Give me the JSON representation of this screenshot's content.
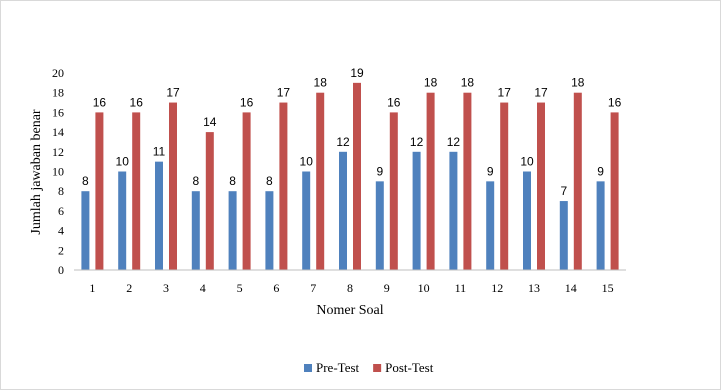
{
  "chart_data": {
    "type": "bar",
    "categories": [
      "1",
      "2",
      "3",
      "4",
      "5",
      "6",
      "7",
      "8",
      "9",
      "10",
      "11",
      "12",
      "13",
      "14",
      "15"
    ],
    "series": [
      {
        "name": "Pre-Test",
        "color": "#4f81bd",
        "values": [
          8,
          10,
          11,
          8,
          8,
          8,
          10,
          12,
          9,
          12,
          12,
          9,
          10,
          7,
          9
        ]
      },
      {
        "name": "Post-Test",
        "color": "#c0504d",
        "values": [
          16,
          16,
          17,
          14,
          16,
          17,
          18,
          19,
          16,
          18,
          18,
          17,
          17,
          18,
          16
        ]
      }
    ],
    "xlabel": "Nomer Soal",
    "ylabel": "Jumlah jawaban benar",
    "ylim": [
      0,
      20
    ],
    "yticks": [
      "0",
      "2",
      "4",
      "6",
      "8",
      "10",
      "12",
      "14",
      "16",
      "18",
      "20"
    ],
    "legend_position": "bottom",
    "grid": false
  }
}
